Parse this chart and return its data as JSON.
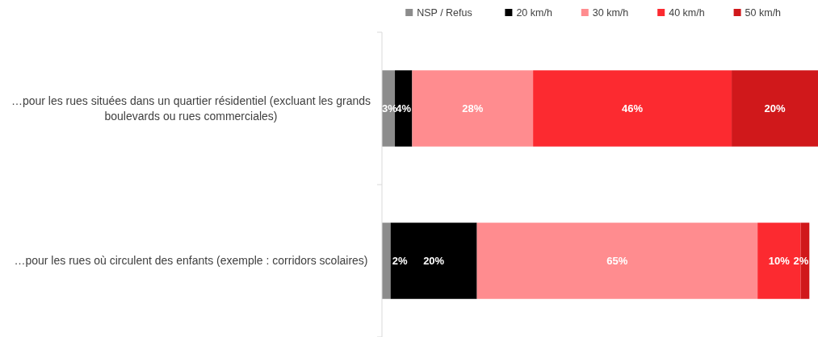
{
  "chart_data": {
    "type": "bar",
    "orientation": "horizontal",
    "stacked": true,
    "relative": false,
    "legend": "top right",
    "categories": [
      "…pour les rues situées dans un quartier résidentiel (excluant les grands boulevards ou rues commerciales)",
      "…pour les rues où circulent des enfants (exemple : corridors scolaires)"
    ],
    "series": [
      {
        "name": "NSP / Refus",
        "color": "#8c8c8c",
        "values": [
          3,
          2
        ],
        "value_labels": [
          "3%",
          "2%"
        ]
      },
      {
        "name": "20 km/h",
        "color": "#000000",
        "values": [
          4,
          20
        ],
        "value_labels": [
          "4%",
          "20%"
        ]
      },
      {
        "name": "30 km/h",
        "color": "#ff8c8f",
        "values": [
          28,
          65
        ],
        "value_labels": [
          "28%",
          "65%"
        ]
      },
      {
        "name": "40 km/h",
        "color": "#fc2a30",
        "values": [
          46,
          10
        ],
        "value_labels": [
          "46%",
          "10%"
        ]
      },
      {
        "name": "50 km/h",
        "color": "#d0181b",
        "values": [
          20,
          2
        ],
        "value_labels": [
          "20%",
          "2%"
        ]
      }
    ]
  }
}
